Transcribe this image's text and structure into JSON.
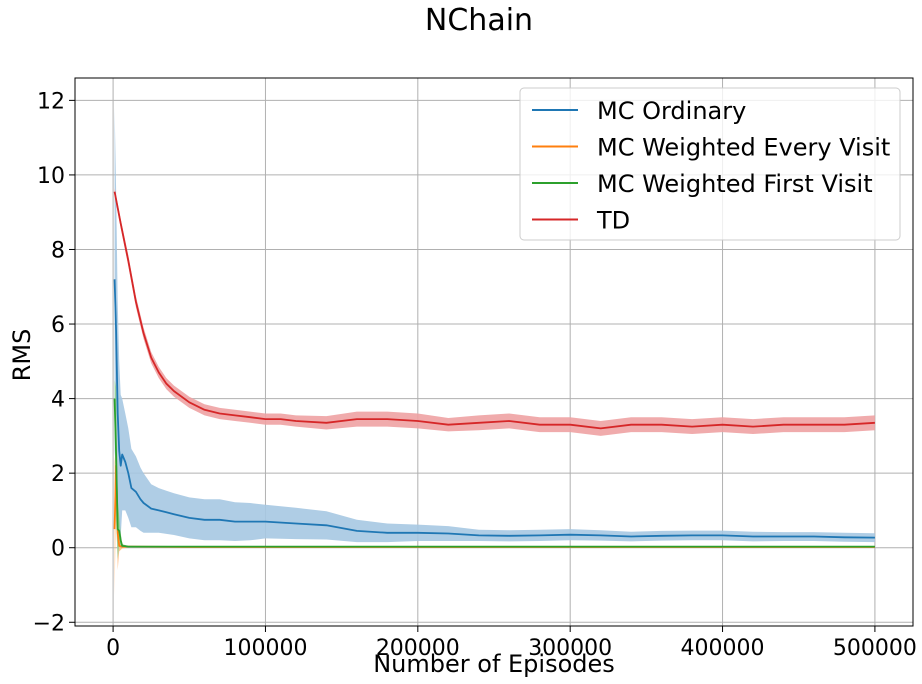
{
  "chart_data": {
    "type": "line",
    "title": "NChain",
    "xlabel": "Number of Episodes",
    "ylabel": "RMS",
    "xlim": [
      -25000,
      525000
    ],
    "ylim": [
      -2.1,
      12.6
    ],
    "xticks": [
      0,
      100000,
      200000,
      300000,
      400000,
      500000
    ],
    "xtick_labels": [
      "0",
      "100000",
      "200000",
      "300000",
      "400000",
      "500000"
    ],
    "yticks": [
      -2,
      0,
      2,
      4,
      6,
      8,
      10,
      12
    ],
    "ytick_labels": [
      "−2",
      "0",
      "2",
      "4",
      "6",
      "8",
      "10",
      "12"
    ],
    "grid": true,
    "legend_position": "top-right",
    "series": [
      {
        "name": "MC Ordinary",
        "color": "#1f77b4",
        "band_color": "#a6c8e2",
        "x": [
          1000,
          2000,
          3000,
          4000,
          5000,
          6000,
          8000,
          10000,
          12000,
          15000,
          18000,
          20000,
          25000,
          30000,
          35000,
          40000,
          50000,
          60000,
          70000,
          80000,
          90000,
          100000,
          120000,
          140000,
          160000,
          180000,
          200000,
          220000,
          240000,
          260000,
          280000,
          300000,
          320000,
          340000,
          360000,
          380000,
          400000,
          420000,
          440000,
          460000,
          480000,
          500000
        ],
        "y": [
          7.2,
          5.8,
          3.6,
          2.6,
          2.2,
          2.5,
          2.3,
          2.0,
          1.6,
          1.5,
          1.3,
          1.2,
          1.05,
          1.0,
          0.95,
          0.9,
          0.8,
          0.75,
          0.75,
          0.7,
          0.7,
          0.7,
          0.65,
          0.6,
          0.45,
          0.4,
          0.4,
          0.38,
          0.33,
          0.32,
          0.33,
          0.35,
          0.33,
          0.3,
          0.32,
          0.33,
          0.33,
          0.3,
          0.3,
          0.3,
          0.28,
          0.27
        ],
        "band_halfwidth": [
          4.6,
          3.8,
          3.0,
          2.4,
          1.9,
          1.5,
          1.3,
          1.2,
          1.05,
          0.95,
          0.85,
          0.8,
          0.65,
          0.6,
          0.58,
          0.56,
          0.55,
          0.55,
          0.55,
          0.52,
          0.5,
          0.45,
          0.42,
          0.38,
          0.3,
          0.25,
          0.22,
          0.2,
          0.15,
          0.15,
          0.15,
          0.15,
          0.14,
          0.13,
          0.13,
          0.13,
          0.13,
          0.13,
          0.12,
          0.12,
          0.12,
          0.12
        ]
      },
      {
        "name": "MC Weighted Every Visit",
        "color": "#ff7f0e",
        "band_color": "#ffbf86",
        "x": [
          1000,
          2000,
          3000,
          4000,
          6000,
          10000,
          50000,
          100000,
          200000,
          300000,
          400000,
          500000
        ],
        "y": [
          0.5,
          2.2,
          0.4,
          0.05,
          0.03,
          0.03,
          0.02,
          0.02,
          0.02,
          0.02,
          0.02,
          0.02
        ],
        "band_halfwidth": [
          1.8,
          0.7,
          1.0,
          0.15,
          0.05,
          0.02,
          0.01,
          0.01,
          0.01,
          0.01,
          0.01,
          0.01
        ]
      },
      {
        "name": "MC Weighted First Visit",
        "color": "#2ca02c",
        "band_color": "#95cf95",
        "x": [
          1000,
          2000,
          3000,
          4000,
          5000,
          6000,
          8000,
          10000,
          50000,
          100000,
          200000,
          300000,
          400000,
          500000
        ],
        "y": [
          4.0,
          2.5,
          0.5,
          0.45,
          0.2,
          0.05,
          0.04,
          0.03,
          0.03,
          0.03,
          0.03,
          0.03,
          0.03,
          0.03
        ],
        "band_halfwidth": [
          0.5,
          1.8,
          0.8,
          0.4,
          0.2,
          0.05,
          0.03,
          0.02,
          0.01,
          0.01,
          0.01,
          0.01,
          0.01,
          0.01
        ]
      },
      {
        "name": "TD",
        "color": "#d62728",
        "band_color": "#eea2a3",
        "x": [
          1000,
          5000,
          10000,
          15000,
          20000,
          25000,
          30000,
          35000,
          40000,
          50000,
          60000,
          70000,
          80000,
          90000,
          100000,
          110000,
          120000,
          140000,
          160000,
          180000,
          200000,
          220000,
          240000,
          260000,
          280000,
          300000,
          320000,
          340000,
          360000,
          380000,
          400000,
          420000,
          440000,
          460000,
          480000,
          500000
        ],
        "y": [
          9.55,
          8.7,
          7.7,
          6.6,
          5.75,
          5.1,
          4.7,
          4.4,
          4.2,
          3.9,
          3.7,
          3.6,
          3.55,
          3.5,
          3.45,
          3.45,
          3.4,
          3.35,
          3.45,
          3.45,
          3.4,
          3.3,
          3.35,
          3.4,
          3.3,
          3.3,
          3.2,
          3.3,
          3.3,
          3.25,
          3.3,
          3.25,
          3.3,
          3.3,
          3.3,
          3.35
        ],
        "band_halfwidth": [
          0.1,
          0.12,
          0.15,
          0.15,
          0.15,
          0.15,
          0.15,
          0.15,
          0.15,
          0.15,
          0.15,
          0.15,
          0.15,
          0.15,
          0.15,
          0.15,
          0.15,
          0.18,
          0.2,
          0.2,
          0.2,
          0.18,
          0.2,
          0.2,
          0.2,
          0.2,
          0.2,
          0.2,
          0.2,
          0.2,
          0.2,
          0.2,
          0.2,
          0.2,
          0.2,
          0.2
        ]
      }
    ]
  }
}
